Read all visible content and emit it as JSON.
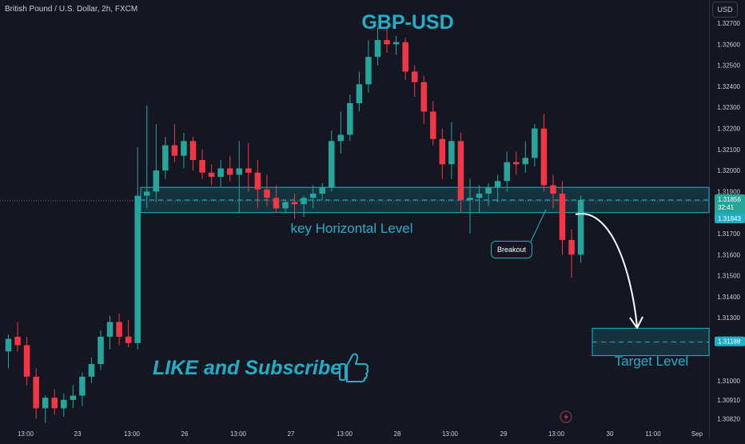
{
  "header": {
    "symbol_title": "British Pound / U.S. Dollar, 2h, FXCM",
    "currency_button": "USD"
  },
  "overlay": {
    "headline": "GBP-USD",
    "promo": "LIKE and Subscribe",
    "promo_icon": "thumbs-up-icon",
    "flash_icon": "lightning-icon"
  },
  "colors": {
    "background": "#141722",
    "bull": "#26a69a",
    "bear": "#f23645",
    "zone": "#1fb0c8",
    "label_text": "#c9ccd6"
  },
  "chart_data": {
    "type": "candlestick",
    "ylim": [
      1.3078,
      1.3278
    ],
    "y_ticks": [
      "1.32700",
      "1.32600",
      "1.32500",
      "1.32400",
      "1.32300",
      "1.32200",
      "1.32100",
      "1.32000",
      "1.31900",
      "1.31700",
      "1.31600",
      "1.31500",
      "1.31400",
      "1.31300",
      "1.31200",
      "1.31000",
      "1.30910",
      "1.30820"
    ],
    "x_tick_labels": [
      "13:00",
      "23",
      "13:00",
      "26",
      "13:00",
      "27",
      "13:00",
      "28",
      "13:00",
      "29",
      "13:00",
      "30",
      "11:00",
      "Sep"
    ],
    "price_labels": [
      {
        "price": 1.31856,
        "text": "1.31856",
        "countdown": "32:41"
      },
      {
        "price": 1.31843,
        "text": "1.31843"
      },
      {
        "price": 1.31188,
        "text": "1.31188"
      }
    ],
    "zones": [
      {
        "name": "key Horizontal Level",
        "top": 1.3192,
        "bottom": 1.318
      },
      {
        "name": "Target Level",
        "top": 1.3125,
        "bottom": 1.3112
      }
    ],
    "annotations": [
      "key Horizontal Level",
      "Target Level",
      "Breakout"
    ],
    "candles": [
      [
        1.3114,
        1.3122,
        1.3106,
        1.312
      ],
      [
        1.3121,
        1.3128,
        1.3114,
        1.3117
      ],
      [
        1.3117,
        1.3121,
        1.3098,
        1.3102
      ],
      [
        1.3102,
        1.3106,
        1.3082,
        1.3087
      ],
      [
        1.3087,
        1.3093,
        1.308,
        1.3092
      ],
      [
        1.3092,
        1.3096,
        1.3084,
        1.3087
      ],
      [
        1.3087,
        1.3094,
        1.3083,
        1.3091
      ],
      [
        1.3091,
        1.3098,
        1.3087,
        1.3093
      ],
      [
        1.3093,
        1.3104,
        1.3088,
        1.3102
      ],
      [
        1.3102,
        1.3111,
        1.3099,
        1.3108
      ],
      [
        1.3108,
        1.3124,
        1.3105,
        1.3121
      ],
      [
        1.3121,
        1.3131,
        1.3115,
        1.3128
      ],
      [
        1.3128,
        1.3132,
        1.3117,
        1.3121
      ],
      [
        1.3121,
        1.3129,
        1.3116,
        1.3118
      ],
      [
        1.3118,
        1.3211,
        1.3115,
        1.3188
      ],
      [
        1.3188,
        1.3231,
        1.3182,
        1.319
      ],
      [
        1.319,
        1.3222,
        1.3185,
        1.32
      ],
      [
        1.32,
        1.3216,
        1.3196,
        1.3212
      ],
      [
        1.3212,
        1.3222,
        1.3204,
        1.3207
      ],
      [
        1.3207,
        1.3218,
        1.3201,
        1.3214
      ],
      [
        1.3214,
        1.3216,
        1.32,
        1.3205
      ],
      [
        1.3205,
        1.321,
        1.3196,
        1.3199
      ],
      [
        1.3199,
        1.3203,
        1.3193,
        1.3197
      ],
      [
        1.3197,
        1.3205,
        1.3192,
        1.3201
      ],
      [
        1.3201,
        1.3207,
        1.3195,
        1.3198
      ],
      [
        1.3198,
        1.3214,
        1.318,
        1.3201
      ],
      [
        1.3201,
        1.3213,
        1.319,
        1.3199
      ],
      [
        1.3199,
        1.3205,
        1.3182,
        1.3191
      ],
      [
        1.3191,
        1.3198,
        1.3183,
        1.3187
      ],
      [
        1.3187,
        1.3193,
        1.318,
        1.3182
      ],
      [
        1.3182,
        1.3186,
        1.318,
        1.3185
      ],
      [
        1.3185,
        1.3189,
        1.3177,
        1.3184
      ],
      [
        1.3184,
        1.3188,
        1.3178,
        1.3187
      ],
      [
        1.3187,
        1.3193,
        1.3182,
        1.3189
      ],
      [
        1.3189,
        1.3194,
        1.3186,
        1.3192
      ],
      [
        1.3192,
        1.3219,
        1.319,
        1.3214
      ],
      [
        1.3214,
        1.3228,
        1.3208,
        1.3217
      ],
      [
        1.3217,
        1.3236,
        1.3214,
        1.3232
      ],
      [
        1.3232,
        1.3247,
        1.3228,
        1.3241
      ],
      [
        1.3241,
        1.3262,
        1.3237,
        1.3254
      ],
      [
        1.3254,
        1.3268,
        1.325,
        1.3262
      ],
      [
        1.3262,
        1.3268,
        1.3256,
        1.326
      ],
      [
        1.326,
        1.3264,
        1.3255,
        1.3261
      ],
      [
        1.3261,
        1.3263,
        1.3243,
        1.3247
      ],
      [
        1.3247,
        1.325,
        1.3235,
        1.3242
      ],
      [
        1.3242,
        1.3245,
        1.3222,
        1.3228
      ],
      [
        1.3228,
        1.3233,
        1.3212,
        1.3215
      ],
      [
        1.3215,
        1.322,
        1.3196,
        1.3203
      ],
      [
        1.3203,
        1.3223,
        1.3196,
        1.3214
      ],
      [
        1.3214,
        1.3218,
        1.318,
        1.3186
      ],
      [
        1.3186,
        1.3196,
        1.317,
        1.3187
      ],
      [
        1.3187,
        1.3193,
        1.318,
        1.3189
      ],
      [
        1.3189,
        1.3194,
        1.3183,
        1.3192
      ],
      [
        1.3192,
        1.3198,
        1.3185,
        1.3195
      ],
      [
        1.3195,
        1.3209,
        1.319,
        1.3204
      ],
      [
        1.3204,
        1.3209,
        1.3198,
        1.3203
      ],
      [
        1.3203,
        1.3214,
        1.3199,
        1.3206
      ],
      [
        1.3206,
        1.3222,
        1.3202,
        1.322
      ],
      [
        1.322,
        1.3227,
        1.319,
        1.3193
      ],
      [
        1.3193,
        1.3198,
        1.3182,
        1.3189
      ],
      [
        1.3189,
        1.3195,
        1.316,
        1.3167
      ],
      [
        1.3167,
        1.3172,
        1.3149,
        1.316
      ],
      [
        1.316,
        1.3188,
        1.3156,
        1.3186
      ]
    ]
  }
}
